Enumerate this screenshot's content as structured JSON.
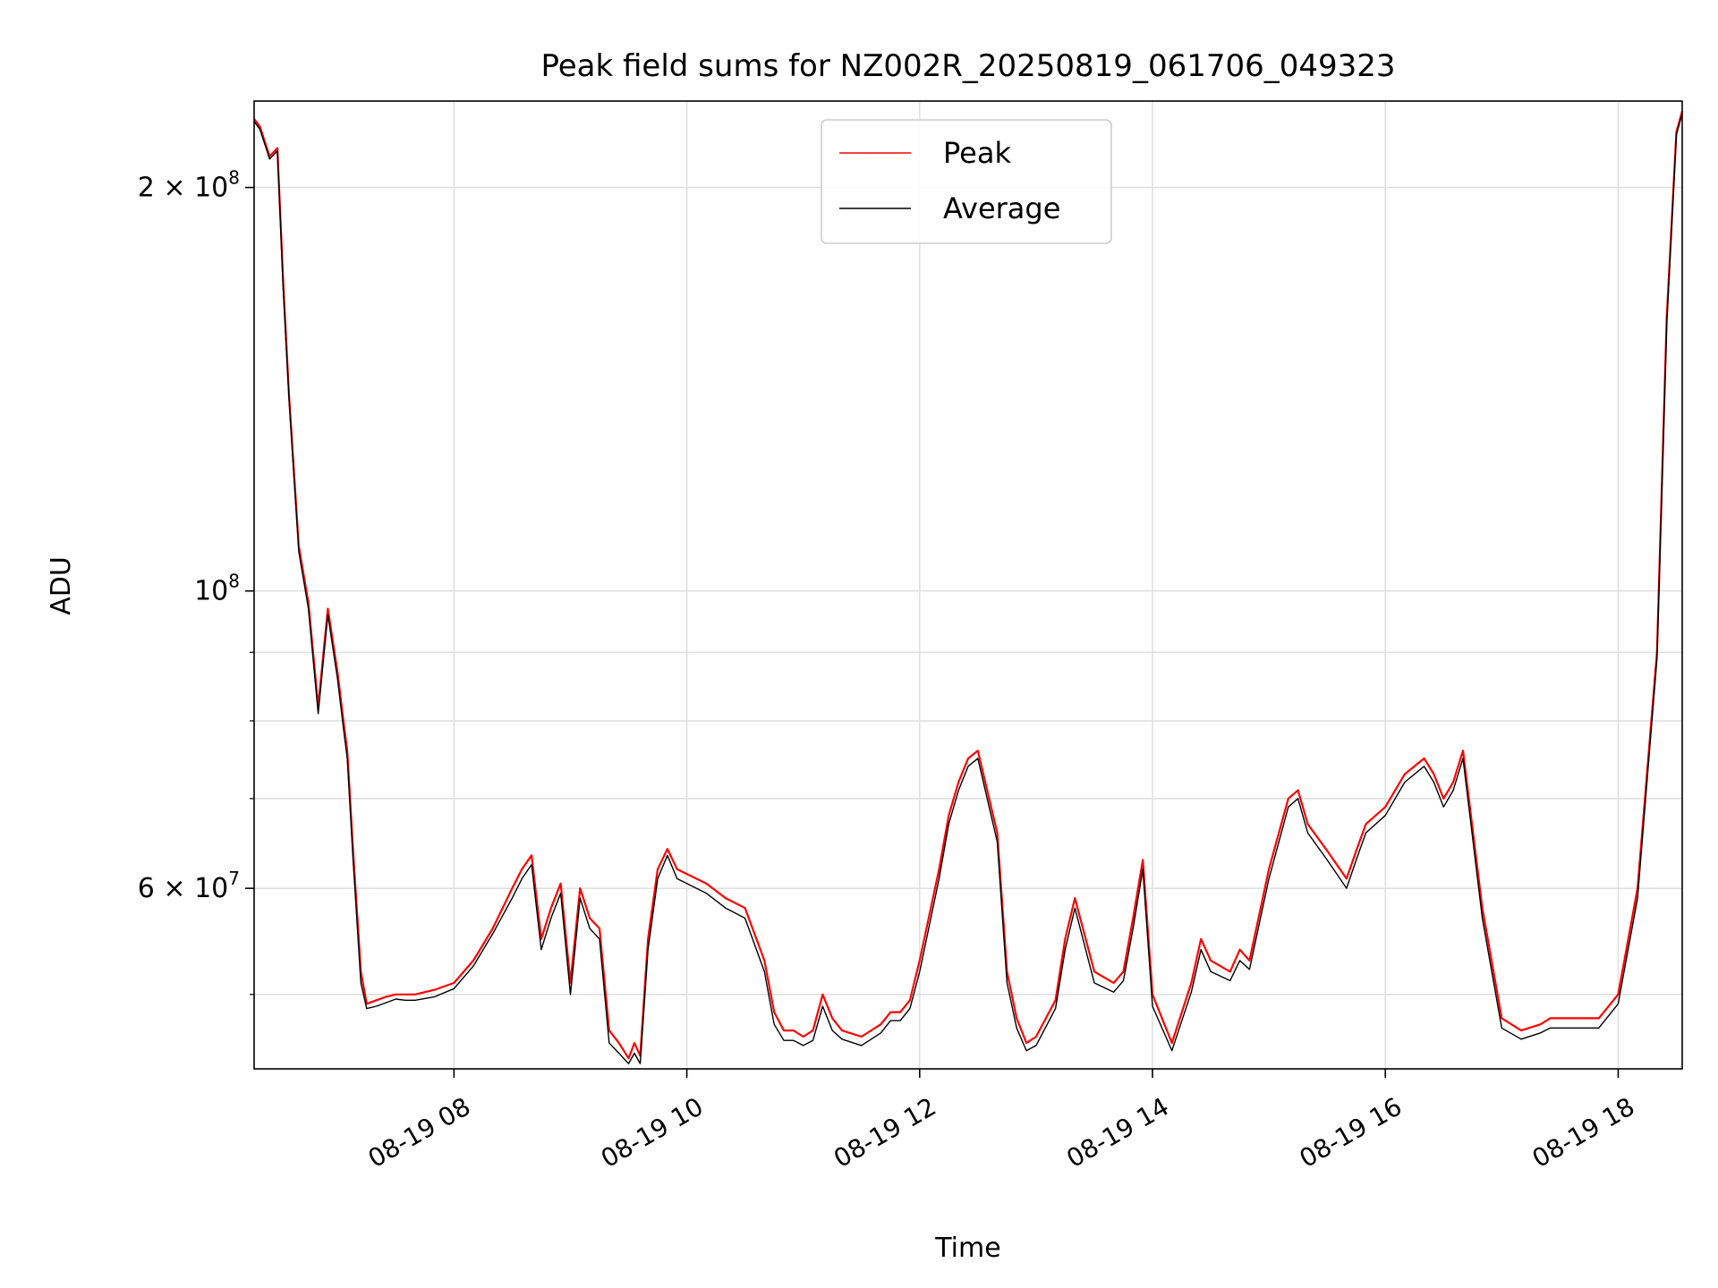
{
  "chart_data": {
    "type": "line",
    "title": "Peak field sums for NZ002R_20250819_061706_049323",
    "xlabel": "Time",
    "ylabel": "ADU",
    "y_scale": "log",
    "ylim": [
      44000000,
      232000000
    ],
    "xlim": [
      "08-19 06:17",
      "08-19 18:33"
    ],
    "grid": true,
    "legend_placement": "upper center",
    "x_ticks": [
      {
        "label": "08-19 08",
        "time": "08:00"
      },
      {
        "label": "08-19 10",
        "time": "10:00"
      },
      {
        "label": "08-19 12",
        "time": "12:00"
      },
      {
        "label": "08-19 14",
        "time": "14:00"
      },
      {
        "label": "08-19 16",
        "time": "16:00"
      },
      {
        "label": "08-19 18",
        "time": "18:00"
      }
    ],
    "y_major_ticks": [
      {
        "label_base": "2 × 10",
        "exp": "8",
        "value": 200000000
      },
      {
        "label_base": "10",
        "exp": "8",
        "value": 100000000
      },
      {
        "label_base": "6 × 10",
        "exp": "7",
        "value": 60000000
      }
    ],
    "y_minor_ticks": [
      50000000,
      70000000,
      80000000,
      90000000
    ],
    "series": [
      {
        "name": "Peak",
        "color": "#ff0000",
        "x": [
          "06:17",
          "06:20",
          "06:25",
          "06:29",
          "06:32",
          "06:35",
          "06:40",
          "06:45",
          "06:50",
          "06:55",
          "07:00",
          "07:03",
          "07:05",
          "07:08",
          "07:12",
          "07:15",
          "07:20",
          "07:25",
          "07:30",
          "07:35",
          "07:40",
          "07:50",
          "08:00",
          "08:10",
          "08:20",
          "08:30",
          "08:35",
          "08:40",
          "08:45",
          "08:50",
          "08:55",
          "09:00",
          "09:05",
          "09:10",
          "09:15",
          "09:20",
          "09:25",
          "09:30",
          "09:33",
          "09:36",
          "09:40",
          "09:45",
          "09:50",
          "09:55",
          "10:00",
          "10:10",
          "10:20",
          "10:30",
          "10:40",
          "10:45",
          "10:50",
          "10:55",
          "11:00",
          "11:05",
          "11:10",
          "11:15",
          "11:20",
          "11:30",
          "11:40",
          "11:45",
          "11:50",
          "11:55",
          "12:00",
          "12:10",
          "12:15",
          "12:20",
          "12:25",
          "12:30",
          "12:40",
          "12:45",
          "12:50",
          "12:55",
          "13:00",
          "13:10",
          "13:15",
          "13:20",
          "13:30",
          "13:40",
          "13:45",
          "13:50",
          "13:55",
          "14:00",
          "14:10",
          "14:20",
          "14:25",
          "14:30",
          "14:40",
          "14:45",
          "14:50",
          "15:00",
          "15:10",
          "15:15",
          "15:20",
          "15:30",
          "15:40",
          "15:45",
          "15:50",
          "16:00",
          "16:10",
          "16:20",
          "16:25",
          "16:30",
          "16:35",
          "16:40",
          "16:50",
          "17:00",
          "17:10",
          "17:20",
          "17:25",
          "17:30",
          "17:40",
          "17:50",
          "18:00",
          "18:10",
          "18:20",
          "18:25",
          "18:30",
          "18:33"
        ],
        "values": [
          225000000,
          222000000,
          211000000,
          214000000,
          170000000,
          140000000,
          108000000,
          98000000,
          82000000,
          97000000,
          87000000,
          80000000,
          76000000,
          64000000,
          52000000,
          49200000,
          49500000,
          49800000,
          50000000,
          50000000,
          50000000,
          50400000,
          51000000,
          53000000,
          56000000,
          60000000,
          62000000,
          63500000,
          55000000,
          58000000,
          60500000,
          51000000,
          60000000,
          57000000,
          56000000,
          47000000,
          46000000,
          44800000,
          46000000,
          45000000,
          55000000,
          62000000,
          64200000,
          62000000,
          61500000,
          60500000,
          59000000,
          58000000,
          53000000,
          48500000,
          47000000,
          47000000,
          46500000,
          47000000,
          50000000,
          48000000,
          47000000,
          46500000,
          47500000,
          48500000,
          48500000,
          49500000,
          53000000,
          62000000,
          68000000,
          72000000,
          75000000,
          76000000,
          66000000,
          52000000,
          48000000,
          46000000,
          46500000,
          49500000,
          55000000,
          59000000,
          52000000,
          51000000,
          52000000,
          57000000,
          63000000,
          50000000,
          46000000,
          51000000,
          55000000,
          53000000,
          52000000,
          54000000,
          53000000,
          62000000,
          70000000,
          71000000,
          67000000,
          64000000,
          61000000,
          64000000,
          67000000,
          69000000,
          73000000,
          75000000,
          73000000,
          70000000,
          72000000,
          76000000,
          58000000,
          48000000,
          47000000,
          47500000,
          48000000,
          48000000,
          48000000,
          48000000,
          50000000,
          60000000,
          90000000,
          160000000,
          220000000,
          228000000
        ],
        "values_note_removed": true
      },
      {
        "name": "Average",
        "color": "#000000",
        "x": [
          "06:17",
          "06:20",
          "06:25",
          "06:29",
          "06:32",
          "06:35",
          "06:40",
          "06:45",
          "06:50",
          "06:55",
          "07:00",
          "07:03",
          "07:05",
          "07:08",
          "07:12",
          "07:15",
          "07:20",
          "07:25",
          "07:30",
          "07:35",
          "07:40",
          "07:50",
          "08:00",
          "08:10",
          "08:20",
          "08:30",
          "08:35",
          "08:40",
          "08:45",
          "08:50",
          "08:55",
          "09:00",
          "09:05",
          "09:10",
          "09:15",
          "09:20",
          "09:25",
          "09:30",
          "09:33",
          "09:36",
          "09:40",
          "09:45",
          "09:50",
          "09:55",
          "10:00",
          "10:10",
          "10:20",
          "10:30",
          "10:40",
          "10:45",
          "10:50",
          "10:55",
          "11:00",
          "11:05",
          "11:10",
          "11:15",
          "11:20",
          "11:30",
          "11:40",
          "11:45",
          "11:50",
          "11:55",
          "12:00",
          "12:10",
          "12:15",
          "12:20",
          "12:25",
          "12:30",
          "12:40",
          "12:45",
          "12:50",
          "12:55",
          "13:00",
          "13:10",
          "13:15",
          "13:20",
          "13:30",
          "13:40",
          "13:45",
          "13:50",
          "13:55",
          "14:00",
          "14:10",
          "14:20",
          "14:25",
          "14:30",
          "14:40",
          "14:45",
          "14:50",
          "15:00",
          "15:10",
          "15:15",
          "15:20",
          "15:30",
          "15:40",
          "15:45",
          "15:50",
          "16:00",
          "16:10",
          "16:20",
          "16:25",
          "16:30",
          "16:35",
          "16:40",
          "16:50",
          "17:00",
          "17:10",
          "17:20",
          "17:25",
          "17:30",
          "17:40",
          "17:50",
          "18:00",
          "18:10",
          "18:20",
          "18:25",
          "18:30",
          "18:33"
        ],
        "values": [
          224000000,
          221000000,
          210000000,
          213000000,
          168000000,
          139000000,
          107000000,
          97000000,
          81000000,
          96000000,
          86000000,
          79000000,
          75000000,
          63000000,
          51000000,
          48800000,
          49000000,
          49300000,
          49600000,
          49500000,
          49500000,
          49800000,
          50500000,
          52500000,
          55500000,
          59000000,
          61000000,
          62500000,
          54000000,
          57000000,
          59500000,
          50000000,
          59000000,
          56000000,
          55000000,
          46000000,
          45200000,
          44400000,
          45200000,
          44400000,
          54000000,
          61000000,
          63500000,
          61000000,
          60500000,
          59500000,
          58000000,
          57000000,
          52000000,
          47500000,
          46200000,
          46200000,
          45800000,
          46200000,
          49000000,
          47000000,
          46300000,
          45800000,
          46800000,
          47800000,
          47800000,
          48800000,
          52000000,
          61000000,
          67000000,
          71000000,
          74000000,
          75000000,
          65000000,
          51000000,
          47200000,
          45400000,
          45800000,
          48800000,
          54000000,
          58000000,
          51000000,
          50200000,
          51200000,
          56000000,
          62000000,
          49000000,
          45400000,
          50200000,
          54000000,
          52000000,
          51200000,
          53000000,
          52200000,
          61000000,
          69000000,
          70000000,
          66000000,
          63000000,
          60000000,
          63000000,
          66000000,
          68000000,
          72000000,
          74000000,
          72000000,
          69000000,
          71000000,
          75000000,
          57000000,
          47200000,
          46300000,
          46800000,
          47200000,
          47200000,
          47200000,
          47200000,
          49200000,
          59000000,
          89000000,
          158000000,
          219000000,
          227000000
        ]
      }
    ]
  }
}
